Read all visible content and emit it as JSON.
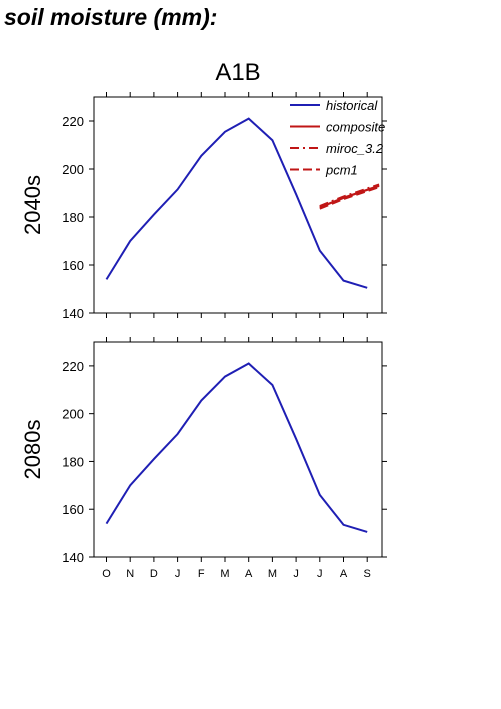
{
  "page_title": "soil moisture (mm):",
  "scenario": "A1B",
  "colors": {
    "historical": "#1f1fb4",
    "projection": "#c01616",
    "axis": "#000000"
  },
  "chart_data": [
    {
      "type": "line",
      "panel_label": "2040s",
      "categories": [
        "O",
        "N",
        "D",
        "J",
        "F",
        "M",
        "A",
        "M",
        "J",
        "J",
        "A",
        "S"
      ],
      "ylim": [
        140,
        230
      ],
      "yticks": [
        140,
        160,
        180,
        200,
        220
      ],
      "legend": {
        "position": "top-right",
        "entries": [
          "historical",
          "composite",
          "miroc_3.2",
          "pcm1"
        ]
      },
      "series": [
        {
          "name": "historical",
          "style": "solid",
          "color": "#1f1fb4",
          "x": [
            0,
            1,
            2,
            3,
            4,
            5,
            6,
            7,
            8,
            9,
            10,
            11
          ],
          "values": [
            154,
            170,
            181,
            191.5,
            205.5,
            215.5,
            221,
            212,
            189.5,
            166,
            153.5,
            150.5
          ]
        },
        {
          "name": "composite",
          "style": "solid",
          "color": "#c01616",
          "x": [
            9,
            10,
            11.5
          ],
          "values": [
            184,
            188,
            193
          ]
        },
        {
          "name": "miroc_3.2",
          "style": "dash-dot",
          "color": "#c01616",
          "x": [
            9,
            10,
            11.5
          ],
          "values": [
            184.5,
            188.5,
            193.5
          ]
        },
        {
          "name": "pcm1",
          "style": "dashed",
          "color": "#c01616",
          "x": [
            9,
            10,
            11.5
          ],
          "values": [
            183.5,
            187.5,
            192.5
          ]
        }
      ]
    },
    {
      "type": "line",
      "panel_label": "2080s",
      "categories": [
        "O",
        "N",
        "D",
        "J",
        "F",
        "M",
        "A",
        "M",
        "J",
        "J",
        "A",
        "S"
      ],
      "ylim": [
        140,
        230
      ],
      "yticks": [
        140,
        160,
        180,
        200,
        220
      ],
      "series": [
        {
          "name": "historical",
          "style": "solid",
          "color": "#1f1fb4",
          "x": [
            0,
            1,
            2,
            3,
            4,
            5,
            6,
            7,
            8,
            9,
            10,
            11
          ],
          "values": [
            154,
            170,
            181,
            191.5,
            205.5,
            215.5,
            221,
            212,
            189.5,
            166,
            153.5,
            150.5
          ]
        }
      ]
    }
  ]
}
